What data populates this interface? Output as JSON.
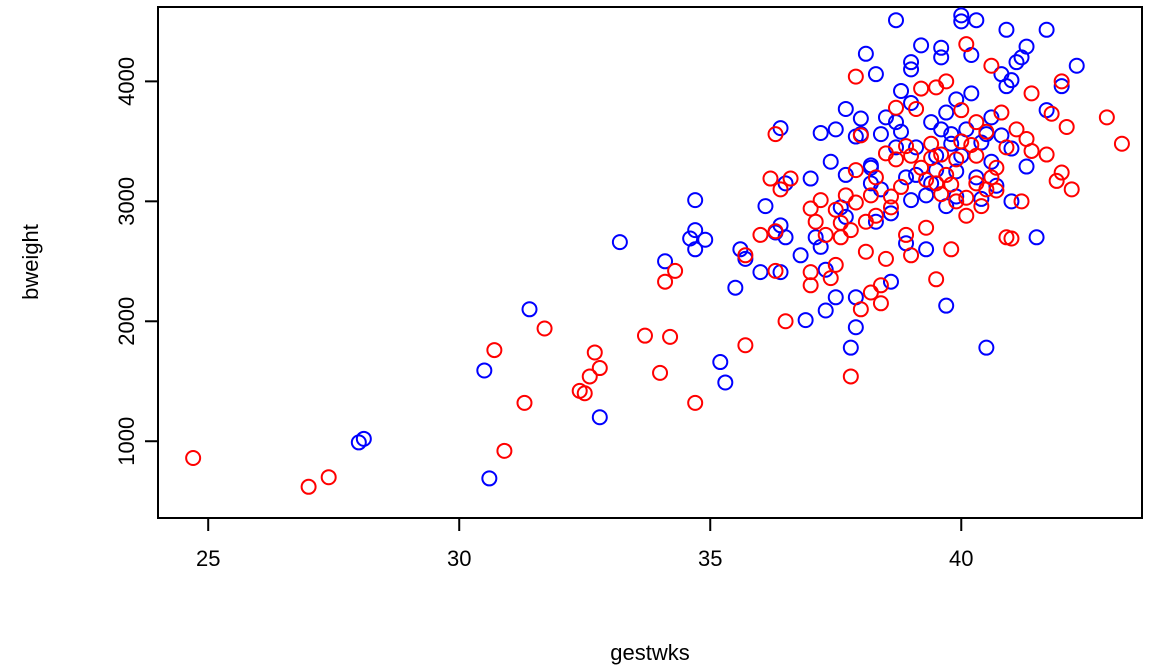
{
  "chart_data": {
    "type": "scatter",
    "title": "",
    "xlabel": "gestwks",
    "ylabel": "bweight",
    "xlim": [
      24.0,
      43.6
    ],
    "ylim": [
      360,
      4620
    ],
    "xticks": [
      25,
      30,
      35,
      40
    ],
    "yticks": [
      1000,
      2000,
      3000,
      4000
    ],
    "grid": false,
    "legend": "none",
    "series": [
      {
        "color": "#0000ff",
        "points": [
          [
            28.0,
            990
          ],
          [
            28.1,
            1020
          ],
          [
            30.6,
            690
          ],
          [
            30.5,
            1590
          ],
          [
            31.4,
            2100
          ],
          [
            32.8,
            1200
          ],
          [
            33.2,
            2660
          ],
          [
            34.1,
            2500
          ],
          [
            34.6,
            2690
          ],
          [
            34.7,
            2760
          ],
          [
            34.7,
            3010
          ],
          [
            34.7,
            2600
          ],
          [
            34.9,
            2680
          ],
          [
            35.2,
            1660
          ],
          [
            35.3,
            1490
          ],
          [
            35.5,
            2280
          ],
          [
            35.6,
            2600
          ],
          [
            35.7,
            2520
          ],
          [
            36.0,
            2410
          ],
          [
            36.1,
            2960
          ],
          [
            36.3,
            2740
          ],
          [
            36.4,
            2800
          ],
          [
            36.4,
            2410
          ],
          [
            36.5,
            2700
          ],
          [
            36.5,
            3150
          ],
          [
            36.4,
            3610
          ],
          [
            36.8,
            2550
          ],
          [
            36.9,
            2010
          ],
          [
            37.0,
            3190
          ],
          [
            37.1,
            2700
          ],
          [
            37.2,
            3570
          ],
          [
            37.2,
            2620
          ],
          [
            37.3,
            2090
          ],
          [
            37.3,
            2430
          ],
          [
            37.5,
            2200
          ],
          [
            37.5,
            3600
          ],
          [
            37.6,
            2950
          ],
          [
            37.7,
            3770
          ],
          [
            37.7,
            2870
          ],
          [
            37.7,
            3220
          ],
          [
            37.8,
            1780
          ],
          [
            37.9,
            2200
          ],
          [
            37.9,
            3540
          ],
          [
            37.9,
            1950
          ],
          [
            38.0,
            3560
          ],
          [
            38.0,
            3690
          ],
          [
            38.1,
            4230
          ],
          [
            38.2,
            3150
          ],
          [
            38.2,
            3300
          ],
          [
            38.3,
            4060
          ],
          [
            38.3,
            2830
          ],
          [
            38.4,
            3100
          ],
          [
            38.4,
            3560
          ],
          [
            38.5,
            3700
          ],
          [
            38.6,
            2900
          ],
          [
            38.6,
            2330
          ],
          [
            38.7,
            3450
          ],
          [
            38.7,
            4510
          ],
          [
            38.8,
            3920
          ],
          [
            38.8,
            3580
          ],
          [
            38.9,
            3200
          ],
          [
            38.9,
            2650
          ],
          [
            39.0,
            4100
          ],
          [
            39.0,
            4160
          ],
          [
            39.0,
            3820
          ],
          [
            39.1,
            3220
          ],
          [
            39.1,
            3450
          ],
          [
            39.2,
            4300
          ],
          [
            39.3,
            2600
          ],
          [
            39.3,
            3050
          ],
          [
            39.4,
            3660
          ],
          [
            39.5,
            3380
          ],
          [
            39.5,
            3260
          ],
          [
            39.6,
            4200
          ],
          [
            39.6,
            4280
          ],
          [
            39.6,
            3600
          ],
          [
            39.7,
            2130
          ],
          [
            39.7,
            2960
          ],
          [
            39.7,
            3740
          ],
          [
            39.8,
            3480
          ],
          [
            39.8,
            3560
          ],
          [
            39.9,
            3850
          ],
          [
            39.9,
            3250
          ],
          [
            39.9,
            3040
          ],
          [
            40.0,
            4550
          ],
          [
            40.0,
            4500
          ],
          [
            40.0,
            3380
          ],
          [
            40.1,
            3600
          ],
          [
            40.2,
            4220
          ],
          [
            40.2,
            3900
          ],
          [
            40.3,
            3200
          ],
          [
            40.3,
            4510
          ],
          [
            40.4,
            3490
          ],
          [
            40.4,
            3020
          ],
          [
            40.5,
            1780
          ],
          [
            40.5,
            3560
          ],
          [
            40.6,
            3700
          ],
          [
            40.7,
            3130
          ],
          [
            40.8,
            4060
          ],
          [
            40.8,
            3550
          ],
          [
            40.9,
            4430
          ],
          [
            40.9,
            3960
          ],
          [
            41.0,
            3000
          ],
          [
            41.0,
            3440
          ],
          [
            41.0,
            4010
          ],
          [
            41.1,
            4160
          ],
          [
            41.2,
            4200
          ],
          [
            41.3,
            4290
          ],
          [
            41.3,
            3290
          ],
          [
            41.5,
            2700
          ],
          [
            41.7,
            3760
          ],
          [
            41.7,
            4430
          ],
          [
            42.0,
            3960
          ],
          [
            42.3,
            4130
          ],
          [
            38.2,
            3280
          ],
          [
            39.0,
            3010
          ],
          [
            39.4,
            3150
          ],
          [
            40.6,
            3330
          ],
          [
            37.4,
            3330
          ],
          [
            38.7,
            3660
          ]
        ]
      },
      {
        "color": "#ff0000",
        "points": [
          [
            24.7,
            860
          ],
          [
            27.0,
            620
          ],
          [
            27.4,
            700
          ],
          [
            30.7,
            1760
          ],
          [
            30.9,
            920
          ],
          [
            31.3,
            1320
          ],
          [
            31.7,
            1940
          ],
          [
            32.4,
            1420
          ],
          [
            32.5,
            1400
          ],
          [
            32.6,
            1540
          ],
          [
            32.7,
            1740
          ],
          [
            32.8,
            1610
          ],
          [
            33.7,
            1880
          ],
          [
            34.0,
            1570
          ],
          [
            34.1,
            2330
          ],
          [
            34.2,
            1870
          ],
          [
            34.3,
            2420
          ],
          [
            34.7,
            1320
          ],
          [
            35.7,
            1800
          ],
          [
            35.7,
            2550
          ],
          [
            36.0,
            2720
          ],
          [
            36.2,
            3190
          ],
          [
            36.3,
            2420
          ],
          [
            36.3,
            2750
          ],
          [
            36.3,
            3560
          ],
          [
            36.4,
            3100
          ],
          [
            36.5,
            2000
          ],
          [
            36.6,
            3190
          ],
          [
            37.0,
            2300
          ],
          [
            37.0,
            2410
          ],
          [
            37.0,
            2940
          ],
          [
            37.1,
            2830
          ],
          [
            37.2,
            3010
          ],
          [
            37.3,
            2720
          ],
          [
            37.4,
            2360
          ],
          [
            37.5,
            2470
          ],
          [
            37.5,
            2930
          ],
          [
            37.6,
            2700
          ],
          [
            37.7,
            3050
          ],
          [
            37.8,
            2760
          ],
          [
            37.8,
            1540
          ],
          [
            37.9,
            4040
          ],
          [
            37.9,
            2990
          ],
          [
            38.0,
            2100
          ],
          [
            38.0,
            3550
          ],
          [
            38.1,
            2580
          ],
          [
            38.1,
            2830
          ],
          [
            38.2,
            3050
          ],
          [
            38.2,
            2240
          ],
          [
            38.3,
            3200
          ],
          [
            38.4,
            2150
          ],
          [
            38.4,
            2300
          ],
          [
            38.5,
            2520
          ],
          [
            38.5,
            3400
          ],
          [
            38.6,
            2950
          ],
          [
            38.7,
            3780
          ],
          [
            38.7,
            3350
          ],
          [
            38.8,
            3120
          ],
          [
            38.9,
            2720
          ],
          [
            39.0,
            3380
          ],
          [
            39.0,
            2550
          ],
          [
            39.1,
            3770
          ],
          [
            39.2,
            3940
          ],
          [
            39.3,
            3180
          ],
          [
            39.3,
            2780
          ],
          [
            39.4,
            3480
          ],
          [
            39.5,
            2350
          ],
          [
            39.5,
            3950
          ],
          [
            39.6,
            3060
          ],
          [
            39.6,
            3390
          ],
          [
            39.7,
            4000
          ],
          [
            39.8,
            3140
          ],
          [
            39.8,
            2600
          ],
          [
            39.9,
            3350
          ],
          [
            40.0,
            3500
          ],
          [
            40.0,
            3760
          ],
          [
            40.1,
            4310
          ],
          [
            40.1,
            2880
          ],
          [
            40.2,
            3470
          ],
          [
            40.3,
            3660
          ],
          [
            40.3,
            3150
          ],
          [
            40.4,
            2960
          ],
          [
            40.5,
            3580
          ],
          [
            40.6,
            3200
          ],
          [
            40.6,
            4130
          ],
          [
            40.7,
            3090
          ],
          [
            40.8,
            3740
          ],
          [
            40.9,
            3450
          ],
          [
            40.9,
            2700
          ],
          [
            41.0,
            2690
          ],
          [
            41.1,
            3600
          ],
          [
            41.2,
            3000
          ],
          [
            41.3,
            3520
          ],
          [
            41.4,
            3900
          ],
          [
            41.4,
            3420
          ],
          [
            41.7,
            3390
          ],
          [
            41.8,
            3730
          ],
          [
            41.9,
            3170
          ],
          [
            42.0,
            3240
          ],
          [
            42.0,
            4000
          ],
          [
            42.1,
            3620
          ],
          [
            42.2,
            3100
          ],
          [
            42.9,
            3700
          ],
          [
            43.2,
            3480
          ],
          [
            39.2,
            3280
          ],
          [
            39.7,
            3220
          ],
          [
            40.3,
            3380
          ],
          [
            38.6,
            3040
          ],
          [
            39.9,
            3000
          ],
          [
            40.7,
            3280
          ],
          [
            37.9,
            3260
          ],
          [
            39.4,
            3360
          ],
          [
            40.1,
            3030
          ],
          [
            38.9,
            3460
          ],
          [
            39.5,
            3150
          ],
          [
            40.5,
            3100
          ],
          [
            37.6,
            2820
          ],
          [
            38.3,
            2880
          ]
        ]
      }
    ]
  }
}
